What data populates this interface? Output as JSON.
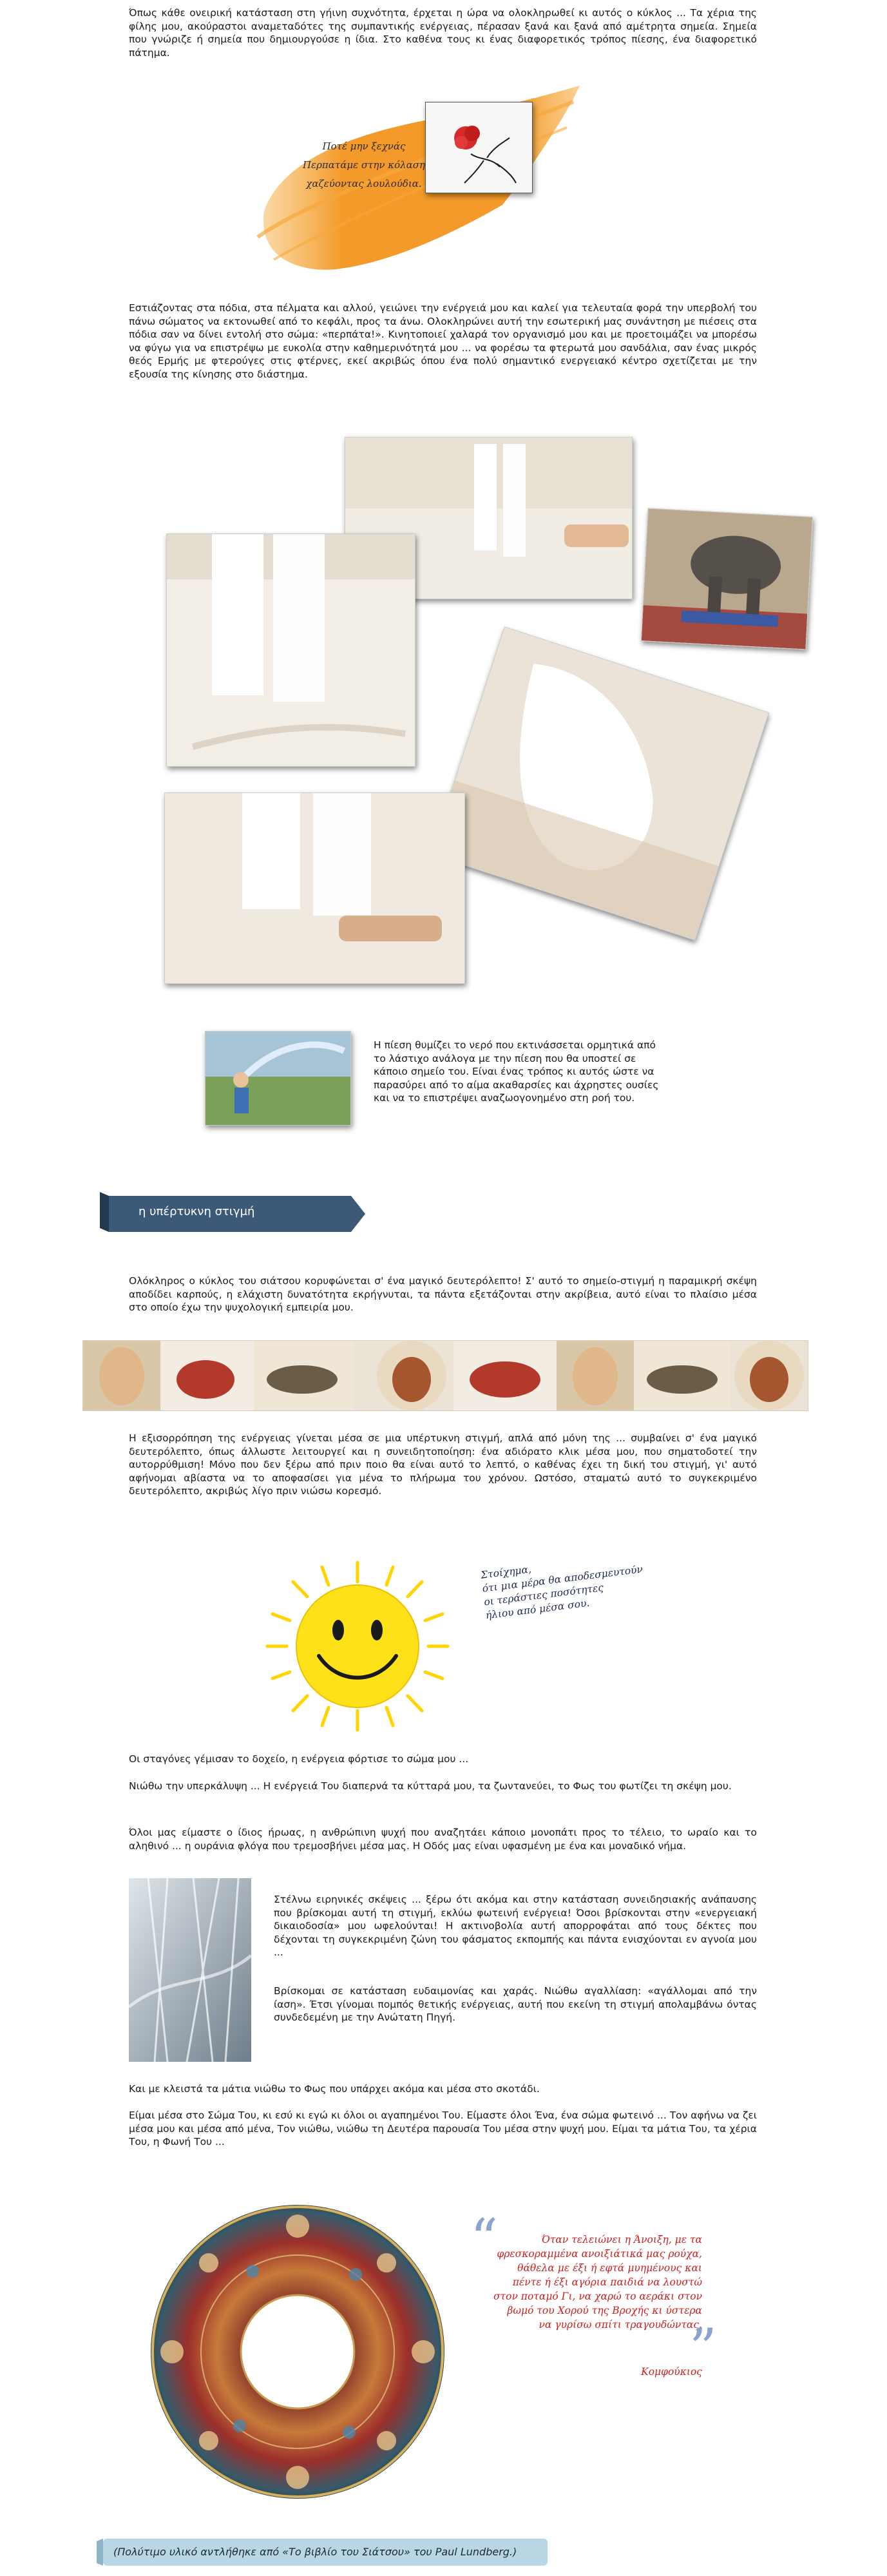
{
  "article": {
    "para_intro": "Όπως κάθε ονειρική κατάσταση στη γήινη συχνότητα, έρχεται η ώρα να ολοκληρωθεί κι αυτός ο κύκλος ... Τα χέρια της φίλης μου, ακούραστοι αναμεταδότες της συμπαντικής ενέργειας, πέρασαν ξανά και ξανά από αμέτρητα σημεία. Σημεία που γνώριζε ή σημεία που δημιουργούσε η ίδια. Στο καθένα τους κι ένας διαφορετικός τρόπος πίεσης, ένα διαφορετικό πάτημα.",
    "quote_flowers": [
      "Ποτέ μην ξεχνάς",
      "Περπατάμε στην κόλαση",
      "χαζεύοντας λουλούδια."
    ],
    "para_feet": "Εστιάζοντας στα πόδια, στα πέλματα και αλλού, γειώνει την ενέργειά μου και καλεί για τελευταία φορά την υπερβολή του πάνω σώματος να εκτονωθεί από το κεφάλι, προς τα άνω. Ολοκληρώνει αυτή την εσωτερική μας συνάντηση με πιέσεις στα πόδια σαν να δίνει εντολή στο σώμα: «περπάτα!». Κινητοποιεί χαλαρά τον οργανισμό μου και με προετοιμάζει να μπορέσω να φύγω για να επιστρέψω με ευκολία στην καθημερινότητά μου ... να φορέσω τα φτερωτά μου σανδάλια, σαν ένας μικρός θεός Ερμής με φτερούγες στις φτέρνες, εκεί ακριβώς όπου ένα πολύ σημαντικό ενεργειακό κέντρο σχετίζεται με την εξουσία της κίνησης στο διάστημα.",
    "para_water": "Η πίεση θυμίζει το νερό που εκτινάσσεται ορμητικά από το λάστιχο ανάλογα με την πίεση που θα υποστεί σε κάποιο σημείο του. Είναι ένας τρόπος κι αυτός ώστε να παρασύρει από το αίμα ακαθαρσίες και άχρηστες ουσίες και να το επιστρέψει αναζωογονημένο στη ροή του.",
    "banner_label": "η υπέρτυκνη στιγμή",
    "para_circle": "Ολόκληρος ο κύκλος του σιάτσου κορυφώνεται σ' ένα μαγικό δευτερόλεπτο! Σ' αυτό το σημείο-στιγμή η παραμικρή σκέψη αποδίδει καρπούς, η ελάχιστη δυνατότητα εκρήγνυται, τα πάντα εξετάζονται στην ακρίβεια, αυτό είναι το πλαίσιο μέσα στο οποίο έχω την ψυχολογική εμπειρία μου.",
    "para_balance": "Η εξισορρόπηση της ενέργειας γίνεται μέσα σε μια υπέρτυκνη στιγμή, απλά από μόνη της ... συμβαίνει σ' ένα μαγικό δευτερόλεπτο, όπως άλλωστε λειτουργεί και η συνειδητοποίηση: ένα αδιόρατο κλικ μέσα μου, που σηματοδοτεί την αυτορρύθμιση! Μόνο που δεν ξέρω από πριν ποιο θα είναι αυτό το λεπτό, ο καθένας έχει τη δική του στιγμή, γι' αυτό αφήνομαι αβίαστα να το αποφασίσει για μένα το πλήρωμα του χρόνου. Ωστόσο, σταματώ αυτό το συγκεκριμένο δευτερόλεπτο, ακριβώς λίγο πριν νιώσω κορεσμό.",
    "sun_quote": [
      "Στοίχημα,",
      "ότι μια μέρα θα αποδεσμευτούν",
      "οι τεράστιες ποσότητες",
      "ήλιου από μέσα σου."
    ],
    "para_drops": "Οι σταγόνες γέμισαν το δοχείο, η ενέργεια φόρτισε το σώμα μου ...",
    "para_presence": "Νιώθω την υπερκάλυψη ... Η ενέργειά Του διαπερνά τα κύτταρά μου, τα ζωντανεύει, το Φως του φωτίζει τη σκέψη μου.",
    "para_same": "Όλοι μας είμαστε ο ίδιος ήρωας, η ανθρώπινη ψυχή που αναζητάει κάποιο μονοπάτι προς το τέλειο, το ωραίο και το αληθινό ... η ουράνια φλόγα που τρεμοσβήνει μέσα μας. Η Οδός μας είναι υφασμένη με ένα και μοναδικό νήμα.",
    "para_thoughts": "Στέλνω ειρηνικές σκέψεις ... ξέρω ότι ακόμα και στην κατάσταση συνειδησιακής ανάπαυσης που βρίσκομαι αυτή τη στιγμή, εκλύω φωτεινή ενέργεια! Όσοι βρίσκονται στην «ενεργειακή δικαιοδοσία» μου ωφελούνται! Η ακτινοβολία αυτή απορροφάται από τους δέκτες που δέχονται τη συγκεκριμένη ζώνη του φάσματος εκπομπής και πάντα ενισχύονται εν αγνοία μου ...",
    "para_euphoria": "Βρίσκομαι σε κατάσταση ευδαιμονίας και χαράς. Νιώθω αγαλλίαση: «αγάλλομαι από την ίαση». Έτσι γίνομαι πομπός θετικής ενέργειας, αυτή που εκείνη τη στιγμή απολαμβάνω όντας συνδεδεμένη με την Ανώτατη Πηγή.",
    "para_eyes": "Και με κλειστά τα μάτια νιώθω το Φως που υπάρχει ακόμα και μέσα στο σκοτάδι.",
    "para_body": "Είμαι μέσα στο Σώμα Του, κι εσύ κι εγώ κι όλοι οι αγαπημένοι Του. Είμαστε όλοι Ένα, ένα σώμα φωτεινό ... Τον αφήνω να ζει μέσα μου και μέσα από μένα, Τον νιώθω, νιώθω τη Δευτέρα παρουσία Του μέσα στην ψυχή μου. Είμαι τα μάτια Του, τα χέρια Του, η Φωνή Του ...",
    "confucius_quote": [
      "Όταν τελειώνει η Άνοιξη, με τα",
      "φρεσκοραμμένα ανοιξιάτικά μας ρούχα,",
      "θάθελα με έξι ή εφτά μυημένους και",
      "πέντε ή έξι αγόρια παιδιά να λουστώ",
      "στον ποταμό Γι, να χαρώ το αεράκι στον",
      "βωμό του Χορού της Βροχής κι ύστερα",
      "να γυρίσω σπίτι τραγουδώντας."
    ],
    "confucius_author": "Κομφούκιος",
    "footer_credit": "(Πολύτιμο υλικό αντλήθηκε από «Το βιβλίο του Σιάτσου» του Paul Lundberg.)"
  },
  "colors": {
    "banner": "#3c5a78",
    "banner_dark": "#23394f",
    "footer_bg": "#b9d6e4",
    "orange": "#f39a2a",
    "red_quote": "#cc1f1f",
    "sun": "#ffe11a"
  }
}
